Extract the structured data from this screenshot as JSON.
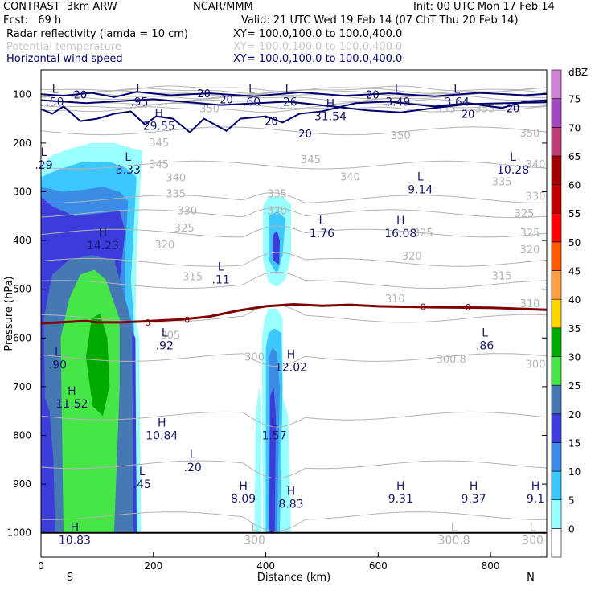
{
  "header": {
    "model": "CONTRAST  3km ARW",
    "org": "NCAR/MMM",
    "init": "Init: 00 UTC Mon 17 Feb 14",
    "fcst": "Fcst:   69 h",
    "valid": "Valid: 21 UTC Wed 19 Feb 14 (07 ChT Thu 20 Feb 14)",
    "fields": [
      {
        "label": "Radar reflectivity (lamda = 10 cm)",
        "xy": "XY= 100.0,100.0 to 100.0,400.0",
        "style": "black"
      },
      {
        "label": "Potential temperature",
        "xy": "XY= 100.0,100.0 to 100.0,400.0",
        "style": "gray"
      },
      {
        "label": "Horizontal wind speed",
        "xy": "XY= 100.0,100.0 to 100.0,400.0",
        "style": "blue"
      }
    ]
  },
  "colors": {
    "theta": "#b4b4b4",
    "wind": "#000070",
    "freezing": "#800000",
    "dbz": [
      "#9affff",
      "#3cc8ff",
      "#3c8ce6",
      "#3c3cdc",
      "#4678b4",
      "#46e646",
      "#00aa00",
      "#ffd700",
      "#ffa046",
      "#ff5a00",
      "#ff0000",
      "#c00000",
      "#a00000",
      "#be3c78",
      "#a046be",
      "#d282d2"
    ]
  },
  "chart_data": {
    "type": "contour-cross-section",
    "xlabel": "Distance (km)",
    "ylabel": "Pressure (hPa)",
    "xlim": [
      0,
      900
    ],
    "ylim": [
      1050,
      50
    ],
    "x_ticks": [
      0,
      200,
      400,
      600,
      800
    ],
    "y_ticks": [
      100,
      200,
      300,
      400,
      500,
      600,
      700,
      800,
      900,
      1000
    ],
    "x_end_labels": {
      "left": "S",
      "right": "N"
    },
    "colorbar": {
      "unit": "dBZ",
      "levels": [
        0,
        5,
        10,
        15,
        20,
        25,
        30,
        35,
        40,
        45,
        50,
        55,
        60,
        65,
        70,
        75
      ]
    },
    "reflectivity_columns": [
      {
        "x0": 0,
        "x1": 180,
        "p_top": 200,
        "p_bot": 1000,
        "peak_dbz": 30
      },
      {
        "x0": 395,
        "x1": 445,
        "p_top": 340,
        "p_bot": 1000,
        "peak_dbz": 20
      }
    ],
    "theta_contour_labels": [
      "350",
      "355",
      "355",
      "350",
      "350",
      "345",
      "345",
      "345",
      "340",
      "340",
      "340",
      "335",
      "335",
      "335",
      "330",
      "330",
      "330",
      "325",
      "325",
      "325",
      "325",
      "320",
      "320",
      "320",
      "315",
      "315",
      "310",
      "310",
      "305",
      "300",
      "300.8",
      "300"
    ],
    "freezing_level": {
      "label": "0",
      "points": [
        [
          0,
          570
        ],
        [
          80,
          565
        ],
        [
          100,
          568
        ],
        [
          140,
          568
        ],
        [
          180,
          566
        ],
        [
          250,
          562
        ],
        [
          300,
          556
        ],
        [
          350,
          544
        ],
        [
          400,
          535
        ],
        [
          450,
          531
        ],
        [
          500,
          534
        ],
        [
          550,
          532
        ],
        [
          600,
          535
        ],
        [
          700,
          537
        ],
        [
          800,
          538
        ],
        [
          900,
          542
        ]
      ]
    },
    "wind_contour_labels": [
      "20",
      "20",
      "20",
      "20",
      "20",
      "20",
      "20",
      "20"
    ],
    "extrema": [
      {
        "type": "L",
        "value": ".50",
        "x": 25,
        "p": 100
      },
      {
        "type": "L",
        "value": ".95",
        "x": 175,
        "p": 100
      },
      {
        "type": "L",
        "value": ".60",
        "x": 375,
        "p": 100
      },
      {
        "type": "L",
        "value": ".26",
        "x": 440,
        "p": 100
      },
      {
        "type": "L",
        "value": "3.49",
        "x": 635,
        "p": 100
      },
      {
        "type": "L",
        "value": "3.64",
        "x": 740,
        "p": 100
      },
      {
        "type": "H",
        "value": "29.55",
        "x": 210,
        "p": 150
      },
      {
        "type": "H",
        "value": "31.54",
        "x": 515,
        "p": 130
      },
      {
        "type": "L",
        "value": ".29",
        "x": 5,
        "p": 230
      },
      {
        "type": "L",
        "value": "3.33",
        "x": 155,
        "p": 240
      },
      {
        "type": "L",
        "value": "9.14",
        "x": 675,
        "p": 280
      },
      {
        "type": "L",
        "value": "10.28",
        "x": 840,
        "p": 240
      },
      {
        "type": "L",
        "value": "1.76",
        "x": 500,
        "p": 370
      },
      {
        "type": "H",
        "value": "16.08",
        "x": 640,
        "p": 370
      },
      {
        "type": "H",
        "value": "14.23",
        "x": 110,
        "p": 395
      },
      {
        "type": "L",
        "value": ".11",
        "x": 320,
        "p": 465
      },
      {
        "type": "L",
        "value": ".92",
        "x": 220,
        "p": 600
      },
      {
        "type": "L",
        "value": ".86",
        "x": 790,
        "p": 600
      },
      {
        "type": "L",
        "value": ".90",
        "x": 30,
        "p": 640
      },
      {
        "type": "H",
        "value": "12.02",
        "x": 445,
        "p": 645
      },
      {
        "type": "H",
        "value": "11.52",
        "x": 55,
        "p": 720
      },
      {
        "type": "H",
        "value": "10.84",
        "x": 215,
        "p": 785
      },
      {
        "type": "L",
        "value": "1.57",
        "x": 415,
        "p": 785
      },
      {
        "type": "L",
        "value": ".20",
        "x": 270,
        "p": 850
      },
      {
        "type": "L",
        "value": ".45",
        "x": 180,
        "p": 885
      },
      {
        "type": "H",
        "value": "8.09",
        "x": 360,
        "p": 915
      },
      {
        "type": "H",
        "value": "8.83",
        "x": 445,
        "p": 925
      },
      {
        "type": "H",
        "value": "9.31",
        "x": 640,
        "p": 915
      },
      {
        "type": "H",
        "value": "9.37",
        "x": 770,
        "p": 915
      },
      {
        "type": "H",
        "value": "9.1",
        "x": 880,
        "p": 915
      },
      {
        "type": "H",
        "value": "10.83",
        "x": 60,
        "p": 1000
      },
      {
        "type": "L",
        "value": "300",
        "x": 380,
        "p": 1000
      },
      {
        "type": "L",
        "value": "300.8",
        "x": 735,
        "p": 1000
      },
      {
        "type": "L",
        "value": "300",
        "x": 875,
        "p": 1000
      }
    ]
  }
}
